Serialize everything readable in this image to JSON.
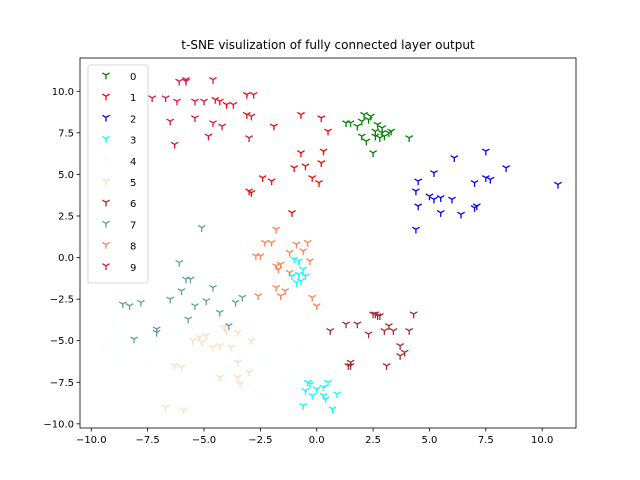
{
  "chart_data": {
    "type": "scatter",
    "title": "t-SNE visulization of fully connected layer output",
    "xlabel": "",
    "ylabel": "",
    "xlim": [
      -10.5,
      11.5
    ],
    "ylim": [
      -10.25,
      12.0
    ],
    "xticks": [
      -10.0,
      -7.5,
      -5.0,
      -2.5,
      0.0,
      2.5,
      5.0,
      7.5,
      10.0
    ],
    "xtick_labels": [
      "−10.0",
      "−7.5",
      "−5.0",
      "−2.5",
      "0.0",
      "2.5",
      "5.0",
      "7.5",
      "10.0"
    ],
    "yticks": [
      -10.0,
      -7.5,
      -5.0,
      -2.5,
      0.0,
      2.5,
      5.0,
      7.5,
      10.0
    ],
    "ytick_labels": [
      "−10.0",
      "−7.5",
      "−5.0",
      "−2.5",
      "0.0",
      "2.5",
      "5.0",
      "7.5",
      "10.0"
    ],
    "marker": "tri_down",
    "legend_position": "upper-left",
    "grid": false,
    "series": [
      {
        "name": "0",
        "color": "#008000",
        "points": [
          [
            1.5,
            8.1
          ],
          [
            1.8,
            7.9
          ],
          [
            2.0,
            8.2
          ],
          [
            2.1,
            8.6
          ],
          [
            2.3,
            8.3
          ],
          [
            2.4,
            8.5
          ],
          [
            2.6,
            7.6
          ],
          [
            2.7,
            8.0
          ],
          [
            2.8,
            7.2
          ],
          [
            2.9,
            7.8
          ],
          [
            3.0,
            7.3
          ],
          [
            3.2,
            7.5
          ],
          [
            3.3,
            7.6
          ],
          [
            2.5,
            6.3
          ],
          [
            2.0,
            7.3
          ],
          [
            2.2,
            7.0
          ],
          [
            2.6,
            7.3
          ],
          [
            4.1,
            7.2
          ],
          [
            1.3,
            8.1
          ],
          [
            2.9,
            7.5
          ]
        ]
      },
      {
        "name": "1",
        "color": "#ff0000",
        "points": [
          [
            -4.3,
            9.4
          ],
          [
            -4.0,
            9.2
          ],
          [
            -3.1,
            9.8
          ],
          [
            -3.1,
            8.6
          ],
          [
            -1.9,
            7.9
          ],
          [
            -0.7,
            8.6
          ],
          [
            0.2,
            8.4
          ],
          [
            0.5,
            7.6
          ],
          [
            -0.7,
            6.3
          ],
          [
            -0.5,
            5.5
          ],
          [
            -1.0,
            5.4
          ],
          [
            0.2,
            5.7
          ],
          [
            0.3,
            6.4
          ],
          [
            -0.2,
            4.8
          ],
          [
            0.1,
            4.5
          ],
          [
            -2.4,
            4.8
          ],
          [
            -2.0,
            4.6
          ],
          [
            -1.1,
            2.7
          ],
          [
            -2.9,
            3.9
          ],
          [
            -3.0,
            4.0
          ]
        ]
      },
      {
        "name": "2",
        "color": "#0000ff",
        "points": [
          [
            4.4,
            4.0
          ],
          [
            4.5,
            4.6
          ],
          [
            4.5,
            3.1
          ],
          [
            4.4,
            1.7
          ],
          [
            5.0,
            3.7
          ],
          [
            5.2,
            3.5
          ],
          [
            5.5,
            3.6
          ],
          [
            5.5,
            2.7
          ],
          [
            6.0,
            3.5
          ],
          [
            6.4,
            2.6
          ],
          [
            6.1,
            6.0
          ],
          [
            7.0,
            4.5
          ],
          [
            7.0,
            3.0
          ],
          [
            7.1,
            3.1
          ],
          [
            7.5,
            4.8
          ],
          [
            7.7,
            4.7
          ],
          [
            7.5,
            6.4
          ],
          [
            8.4,
            5.4
          ],
          [
            10.7,
            4.4
          ],
          [
            5.2,
            5.1
          ]
        ]
      },
      {
        "name": "3",
        "color": "#00ffff",
        "points": [
          [
            -1.0,
            -0.1
          ],
          [
            -0.9,
            -1.5
          ],
          [
            -0.8,
            -1.0
          ],
          [
            -0.6,
            -0.7
          ],
          [
            -0.5,
            -1.1
          ],
          [
            -0.7,
            -1.4
          ],
          [
            -1.1,
            -1.1
          ],
          [
            -0.3,
            -7.6
          ],
          [
            -0.5,
            -8.0
          ],
          [
            -0.2,
            -8.3
          ],
          [
            0.3,
            -7.8
          ],
          [
            0.5,
            -7.5
          ],
          [
            0.4,
            -8.5
          ],
          [
            0.7,
            -9.1
          ],
          [
            0.9,
            -8.2
          ],
          [
            -0.6,
            -8.9
          ],
          [
            0.0,
            -7.9
          ],
          [
            -0.4,
            -7.5
          ],
          [
            0.3,
            -8.3
          ],
          [
            -0.8,
            -0.2
          ]
        ]
      },
      {
        "name": "4",
        "color": "#f0ffff",
        "points": [
          [
            -9.5,
            -5.5
          ],
          [
            -9.2,
            -4.9
          ],
          [
            -8.9,
            -6.1
          ],
          [
            -8.5,
            -5.1
          ],
          [
            -7.4,
            -6.4
          ],
          [
            -7.0,
            -5.3
          ],
          [
            -6.2,
            -4.6
          ],
          [
            -6.4,
            -3.3
          ],
          [
            -5.5,
            -4.1
          ],
          [
            -4.6,
            -3.6
          ],
          [
            -4.0,
            -5.0
          ],
          [
            -3.2,
            -4.5
          ],
          [
            -3.5,
            -6.1
          ],
          [
            -3.9,
            -6.6
          ],
          [
            -2.3,
            -6.2
          ],
          [
            -1.2,
            -7.3
          ],
          [
            0.3,
            -4.2
          ],
          [
            -0.7,
            -5.6
          ],
          [
            -2.3,
            -8.3
          ],
          [
            -9.0,
            -4.0
          ]
        ]
      },
      {
        "name": "5",
        "color": "#ffdab9",
        "points": [
          [
            -6.7,
            -9.0
          ],
          [
            -5.9,
            -9.2
          ],
          [
            -5.1,
            -5.1
          ],
          [
            -4.9,
            -4.7
          ],
          [
            -4.6,
            -5.4
          ],
          [
            -4.3,
            -5.3
          ],
          [
            -4.1,
            -4.2
          ],
          [
            -3.8,
            -5.4
          ],
          [
            -3.5,
            -4.5
          ],
          [
            -3.5,
            -6.3
          ],
          [
            -3.4,
            -7.6
          ],
          [
            -3.5,
            -7.2
          ],
          [
            -3.0,
            -6.9
          ],
          [
            -4.3,
            -7.2
          ],
          [
            -6.0,
            -6.6
          ],
          [
            -6.3,
            -6.5
          ],
          [
            -5.5,
            -5.0
          ],
          [
            -5.2,
            -4.8
          ],
          [
            -2.9,
            -5.0
          ],
          [
            -4.0,
            -4.4
          ]
        ]
      },
      {
        "name": "6",
        "color": "#a52a2a",
        "points": [
          [
            0.6,
            -4.4
          ],
          [
            1.3,
            -4.0
          ],
          [
            1.5,
            -6.5
          ],
          [
            1.5,
            -6.3
          ],
          [
            1.8,
            -4.0
          ],
          [
            2.3,
            -4.6
          ],
          [
            2.5,
            -3.4
          ],
          [
            2.6,
            -3.4
          ],
          [
            2.7,
            -3.5
          ],
          [
            3.2,
            -4.1
          ],
          [
            3.4,
            -4.4
          ],
          [
            3.7,
            -5.9
          ],
          [
            3.9,
            -5.7
          ],
          [
            4.1,
            -4.4
          ],
          [
            4.3,
            -3.4
          ],
          [
            3.1,
            -6.5
          ],
          [
            3.0,
            -4.4
          ],
          [
            3.7,
            -5.3
          ],
          [
            1.4,
            -6.5
          ],
          [
            2.8,
            -3.5
          ]
        ]
      },
      {
        "name": "7",
        "color": "#5f9ea0",
        "points": [
          [
            -8.6,
            -2.8
          ],
          [
            -8.3,
            -2.9
          ],
          [
            -7.8,
            -2.7
          ],
          [
            -8.1,
            -4.9
          ],
          [
            -7.1,
            -4.5
          ],
          [
            -7.1,
            -4.3
          ],
          [
            -6.5,
            -2.5
          ],
          [
            -6.1,
            -0.3
          ],
          [
            -5.8,
            -1.3
          ],
          [
            -5.6,
            -1.3
          ],
          [
            -5.4,
            -2.9
          ],
          [
            -5.7,
            -3.7
          ],
          [
            -4.9,
            -2.6
          ],
          [
            -4.6,
            -1.8
          ],
          [
            -4.3,
            -3.3
          ],
          [
            -3.6,
            -2.7
          ],
          [
            -3.3,
            -2.4
          ],
          [
            -3.9,
            -4.1
          ],
          [
            -5.1,
            1.8
          ],
          [
            -6.0,
            -2.0
          ]
        ]
      },
      {
        "name": "8",
        "color": "#ff7f50",
        "points": [
          [
            -2.3,
            0.9
          ],
          [
            -2.7,
            0.1
          ],
          [
            -2.5,
            0.1
          ],
          [
            -1.8,
            -0.5
          ],
          [
            -1.6,
            -2.3
          ],
          [
            -1.6,
            -0.4
          ],
          [
            -1.7,
            -0.7
          ],
          [
            -1.4,
            -2.0
          ],
          [
            -1.2,
            0.3
          ],
          [
            -1.2,
            -0.9
          ],
          [
            -0.9,
            0.8
          ],
          [
            -0.6,
            0.4
          ],
          [
            -0.4,
            0.9
          ],
          [
            -0.3,
            -0.2
          ],
          [
            -0.2,
            -2.4
          ],
          [
            0.0,
            -2.9
          ],
          [
            -1.8,
            1.7
          ],
          [
            -2.6,
            -2.3
          ],
          [
            -2.0,
            0.9
          ],
          [
            -1.8,
            -1.8
          ]
        ]
      },
      {
        "name": "9",
        "color": "#dc143c",
        "points": [
          [
            -7.3,
            9.6
          ],
          [
            -6.7,
            9.6
          ],
          [
            -6.1,
            10.6
          ],
          [
            -5.8,
            10.6
          ],
          [
            -5.4,
            9.4
          ],
          [
            -5.0,
            9.4
          ],
          [
            -4.6,
            10.7
          ],
          [
            -4.5,
            9.5
          ],
          [
            -4.6,
            8.1
          ],
          [
            -4.2,
            7.9
          ],
          [
            -4.8,
            7.3
          ],
          [
            -5.4,
            8.4
          ],
          [
            -6.2,
            9.4
          ],
          [
            -5.8,
            10.7
          ],
          [
            -6.5,
            8.2
          ],
          [
            -6.3,
            6.8
          ],
          [
            -3.7,
            9.2
          ],
          [
            -2.8,
            9.8
          ],
          [
            -2.9,
            8.5
          ],
          [
            -3.0,
            7.2
          ]
        ]
      }
    ]
  }
}
